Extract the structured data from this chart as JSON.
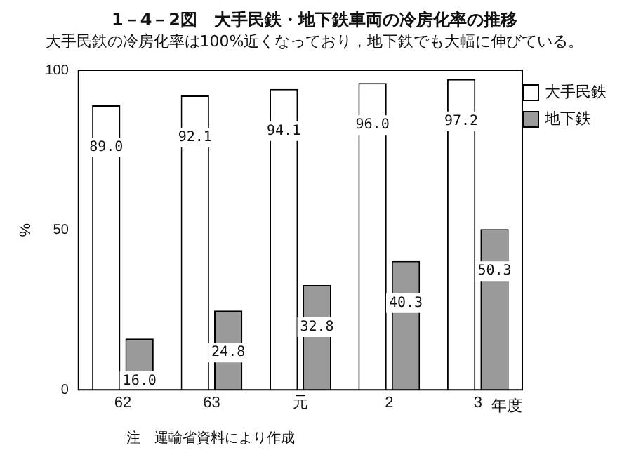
{
  "chart_data": {
    "type": "bar",
    "title": "1－4－2図　大手民鉄・地下鉄車両の冷房化率の推移",
    "subtitle": "大手民鉄の冷房化率は100%近くなっており，地下鉄でも大幅に伸びている。",
    "ylabel": "%",
    "xlabel": "年度",
    "categories": [
      "62",
      "63",
      "元",
      "2",
      "3"
    ],
    "series": [
      {
        "name": "大手民鉄",
        "color": "#ffffff",
        "values": [
          89.0,
          92.1,
          94.1,
          96.0,
          97.2
        ],
        "value_labels": [
          "89.0",
          "92.1",
          "94.1",
          "96.0",
          "97.2"
        ]
      },
      {
        "name": "地下鉄",
        "color": "#9a9a9a",
        "values": [
          16.0,
          24.8,
          32.8,
          40.3,
          50.3
        ],
        "value_labels": [
          "16.0",
          "24.8",
          "32.8",
          "40.3",
          "50.3"
        ]
      }
    ],
    "ylim": [
      0,
      100
    ],
    "yticks": [
      0,
      50,
      100
    ],
    "grid": false,
    "legend": "top right",
    "annotations": [
      "注　運輸省資料により作成"
    ]
  }
}
